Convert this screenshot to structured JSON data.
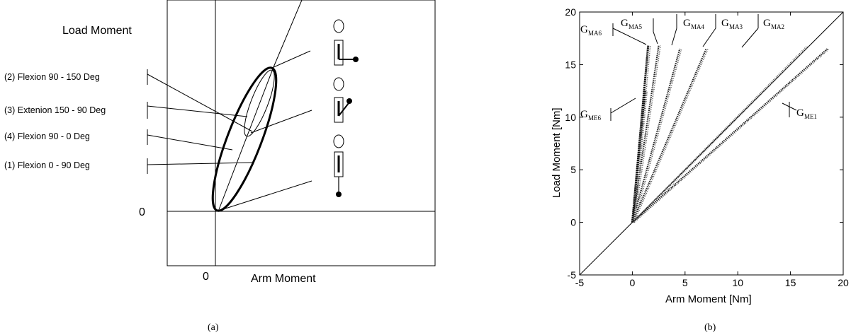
{
  "panel_a": {
    "caption": "(a)",
    "ylabel": "Load Moment",
    "xlabel": "Arm Moment",
    "x_origin_label": "0",
    "y_origin_label": "0",
    "phases": [
      "(2) Flexion 90 - 150 Deg",
      "(3) Extenion 150 - 90 Deg",
      "(4) Flexion 90 - 0 Deg",
      "(1) Flexion 0 - 90 Deg"
    ]
  },
  "panel_b": {
    "caption": "(b)",
    "labels": {
      "gma6": {
        "main": "G",
        "sub": "MA6"
      },
      "gma5": {
        "main": "G",
        "sub": "MA5"
      },
      "gma4": {
        "main": "G",
        "sub": "MA4"
      },
      "gma3": {
        "main": "G",
        "sub": "MA3"
      },
      "gma2": {
        "main": "G",
        "sub": "MA2"
      },
      "gme6": {
        "main": "G",
        "sub": "ME6"
      },
      "gme1": {
        "main": "G",
        "sub": "ME1"
      }
    }
  },
  "chart_data": [
    {
      "type": "line",
      "panel": "a",
      "xlabel": "Arm Moment",
      "ylabel": "Load Moment",
      "series": []
    },
    {
      "type": "scatter",
      "panel": "b",
      "xlabel": "Arm Moment [Nm]",
      "ylabel": "Load Moment [Nm]",
      "xlim": [
        -5,
        20
      ],
      "ylim": [
        -5,
        20
      ],
      "xticks": [
        "-5",
        "0",
        "5",
        "10",
        "15",
        "20"
      ],
      "yticks": [
        "-5",
        "0",
        "5",
        "10",
        "15",
        "20"
      ],
      "series": [
        {
          "name": "G_MA6",
          "x": [
            0,
            1.5
          ],
          "y": [
            0,
            16.8
          ]
        },
        {
          "name": "G_MA5",
          "x": [
            0,
            2.5
          ],
          "y": [
            0,
            16.8
          ]
        },
        {
          "name": "G_MA4",
          "x": [
            0,
            4.5
          ],
          "y": [
            0,
            16.5
          ]
        },
        {
          "name": "G_MA3",
          "x": [
            0,
            7.0
          ],
          "y": [
            0,
            16.5
          ]
        },
        {
          "name": "G_MA2",
          "x": [
            0,
            16.5
          ],
          "y": [
            0,
            16.7
          ]
        },
        {
          "name": "G_ME1",
          "x": [
            0,
            18.5
          ],
          "y": [
            0,
            16.5
          ]
        },
        {
          "name": "G_ME6",
          "x": [
            0,
            1.2
          ],
          "y": [
            0,
            12.5
          ]
        }
      ]
    }
  ]
}
